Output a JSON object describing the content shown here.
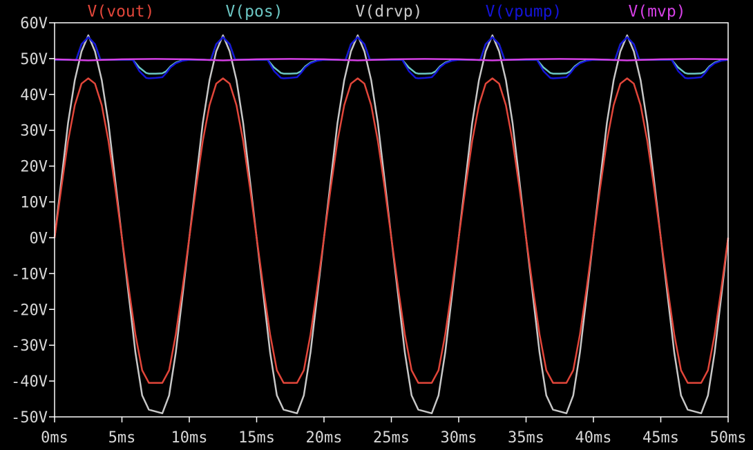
{
  "chart_data": {
    "type": "line",
    "title": "",
    "xlabel": "",
    "ylabel": "",
    "xlim": [
      0,
      50
    ],
    "ylim": [
      -50,
      60
    ],
    "x_unit": "ms",
    "y_unit": "V",
    "x_ticks": [
      0,
      5,
      10,
      15,
      20,
      25,
      30,
      35,
      40,
      45,
      50
    ],
    "x_tick_labels": [
      "0ms",
      "5ms",
      "10ms",
      "15ms",
      "20ms",
      "25ms",
      "30ms",
      "35ms",
      "40ms",
      "45ms",
      "50ms"
    ],
    "y_ticks": [
      60,
      50,
      40,
      30,
      20,
      10,
      0,
      -10,
      -20,
      -30,
      -40,
      -50
    ],
    "y_tick_labels": [
      "60V",
      "50V",
      "40V",
      "30V",
      "20V",
      "10V",
      "0V",
      "-10V",
      "-20V",
      "-30V",
      "-40V",
      "-50V"
    ],
    "grid": false,
    "legend_position": "top",
    "colors": {
      "background": "#000000",
      "frame": "#ffffff",
      "axis_text": "#d8d8d8"
    },
    "series": [
      {
        "name": "V(vout)",
        "color": "#e2463a",
        "x": [
          0,
          0.5,
          1,
          1.5,
          2,
          2.5,
          3,
          3.5,
          4,
          4.5,
          5,
          5.5,
          6,
          6.5,
          7,
          7.5,
          8,
          8.5,
          9,
          9.5,
          10,
          10.5,
          11,
          11.5,
          12,
          12.5,
          13,
          13.5,
          14,
          14.5,
          15,
          15.5,
          16,
          16.5,
          17,
          17.5,
          18,
          18.5,
          19,
          19.5,
          20,
          20.5,
          21,
          21.5,
          22,
          22.5,
          23,
          23.5,
          24,
          24.5,
          25,
          25.5,
          26,
          26.5,
          27,
          27.5,
          28,
          28.5,
          29,
          29.5,
          30,
          30.5,
          31,
          31.5,
          32,
          32.5,
          33,
          33.5,
          34,
          34.5,
          35,
          35.5,
          36,
          36.5,
          37,
          37.5,
          38,
          38.5,
          39,
          39.5,
          40,
          40.5,
          41,
          41.5,
          42,
          42.5,
          43,
          43.5,
          44,
          44.5,
          45,
          45.5,
          46,
          46.5,
          47,
          47.5,
          48,
          48.5,
          49,
          49.5,
          50
        ],
        "y": [
          0,
          14,
          27,
          37,
          43,
          44.5,
          43,
          37,
          27,
          14,
          0,
          -14,
          -27,
          -37,
          -40.5,
          -40.5,
          -40.5,
          -37,
          -27,
          -14,
          0,
          14,
          27,
          37,
          43,
          44.5,
          43,
          37,
          27,
          14,
          0,
          -14,
          -27,
          -37,
          -40.5,
          -40.5,
          -40.5,
          -37,
          -27,
          -14,
          0,
          14,
          27,
          37,
          43,
          44.5,
          43,
          37,
          27,
          14,
          0,
          -14,
          -27,
          -37,
          -40.5,
          -40.5,
          -40.5,
          -37,
          -27,
          -14,
          0,
          14,
          27,
          37,
          43,
          44.5,
          43,
          37,
          27,
          14,
          0,
          -14,
          -27,
          -37,
          -40.5,
          -40.5,
          -40.5,
          -37,
          -27,
          -14,
          0,
          14,
          27,
          37,
          43,
          44.5,
          43,
          37,
          27,
          14,
          0,
          -14,
          -27,
          -37,
          -40.5,
          -40.5,
          -40.5,
          -37,
          -27,
          -14,
          0
        ]
      },
      {
        "name": "V(pos)",
        "color": "#6cc7c4",
        "x": [
          0,
          1,
          1.6,
          2,
          2.5,
          3,
          3.4,
          4,
          5.8,
          6.3,
          6.8,
          7,
          7.5,
          8,
          8.3,
          8.6,
          9,
          9.5,
          10,
          11,
          11.6,
          12,
          12.5,
          13,
          13.4,
          14,
          15.8,
          16.3,
          16.8,
          17,
          17.5,
          18,
          18.3,
          18.6,
          19,
          19.5,
          20,
          21,
          21.6,
          22,
          22.5,
          23,
          23.4,
          24,
          25.8,
          26.3,
          26.8,
          27,
          27.5,
          28,
          28.3,
          28.6,
          29,
          29.5,
          30,
          31,
          31.6,
          32,
          32.5,
          33,
          33.4,
          34,
          35.8,
          36.3,
          36.8,
          37,
          37.5,
          38,
          38.3,
          38.6,
          39,
          39.5,
          40,
          41,
          41.6,
          42,
          42.5,
          43,
          43.4,
          44,
          45.8,
          46.3,
          46.8,
          47,
          47.5,
          48,
          48.3,
          48.6,
          49,
          49.5,
          50
        ],
        "y": [
          49.7,
          49.7,
          49.6,
          54,
          56,
          54,
          49.7,
          49.7,
          49.7,
          47.5,
          46,
          45.8,
          45.8,
          45.9,
          46.5,
          47.8,
          48.9,
          49.5,
          49.7,
          49.7,
          49.6,
          54,
          56,
          54,
          49.7,
          49.7,
          49.7,
          47.5,
          46,
          45.8,
          45.8,
          45.9,
          46.5,
          47.8,
          48.9,
          49.5,
          49.7,
          49.7,
          49.6,
          54,
          56,
          54,
          49.7,
          49.7,
          49.7,
          47.5,
          46,
          45.8,
          45.8,
          45.9,
          46.5,
          47.8,
          48.9,
          49.5,
          49.7,
          49.7,
          49.6,
          54,
          56,
          54,
          49.7,
          49.7,
          49.7,
          47.5,
          46,
          45.8,
          45.8,
          45.9,
          46.5,
          47.8,
          48.9,
          49.5,
          49.7,
          49.7,
          49.6,
          54,
          56,
          54,
          49.7,
          49.7,
          49.7,
          47.5,
          46,
          45.8,
          45.8,
          45.9,
          46.5,
          47.8,
          48.9,
          49.5,
          49.7
        ]
      },
      {
        "name": "V(drvp)",
        "color": "#c8c8c8",
        "x": [
          0,
          0.5,
          1,
          1.5,
          2,
          2.5,
          3,
          3.5,
          4,
          4.5,
          5,
          5.5,
          6,
          6.5,
          7,
          7.5,
          8,
          8.5,
          9,
          9.5,
          10,
          10.5,
          11,
          11.5,
          12,
          12.5,
          13,
          13.5,
          14,
          14.5,
          15,
          15.5,
          16,
          16.5,
          17,
          17.5,
          18,
          18.5,
          19,
          19.5,
          20,
          20.5,
          21,
          21.5,
          22,
          22.5,
          23,
          23.5,
          24,
          24.5,
          25,
          25.5,
          26,
          26.5,
          27,
          27.5,
          28,
          28.5,
          29,
          29.5,
          30,
          30.5,
          31,
          31.5,
          32,
          32.5,
          33,
          33.5,
          34,
          34.5,
          35,
          35.5,
          36,
          36.5,
          37,
          37.5,
          38,
          38.5,
          39,
          39.5,
          40,
          40.5,
          41,
          41.5,
          42,
          42.5,
          43,
          43.5,
          44,
          44.5,
          45,
          45.5,
          46,
          46.5,
          47,
          47.5,
          48,
          48.5,
          49,
          49.5,
          50
        ],
        "y": [
          0,
          16,
          32,
          44,
          52,
          56.5,
          52,
          44,
          32,
          16,
          0,
          -16,
          -32,
          -44,
          -48,
          -48.5,
          -49,
          -44,
          -32,
          -16,
          0,
          16,
          32,
          44,
          52,
          56.5,
          52,
          44,
          32,
          16,
          0,
          -16,
          -32,
          -44,
          -48,
          -48.5,
          -49,
          -44,
          -32,
          -16,
          0,
          16,
          32,
          44,
          52,
          56.5,
          52,
          44,
          32,
          16,
          0,
          -16,
          -32,
          -44,
          -48,
          -48.5,
          -49,
          -44,
          -32,
          -16,
          0,
          16,
          32,
          44,
          52,
          56.5,
          52,
          44,
          32,
          16,
          0,
          -16,
          -32,
          -44,
          -48,
          -48.5,
          -49,
          -44,
          -32,
          -16,
          0,
          16,
          32,
          44,
          52,
          56.5,
          52,
          44,
          32,
          16,
          0,
          -16,
          -32,
          -44,
          -48,
          -48.5,
          -49,
          -44,
          -32,
          -16,
          0
        ]
      },
      {
        "name": "V(vpump)",
        "color": "#1414d8",
        "x": [
          0,
          1,
          1.6,
          2,
          2.5,
          3,
          3.4,
          4,
          5.8,
          6.3,
          6.8,
          7,
          7.5,
          8,
          8.3,
          8.6,
          9,
          9.5,
          10,
          11,
          11.6,
          12,
          12.5,
          13,
          13.4,
          14,
          15.8,
          16.3,
          16.8,
          17,
          17.5,
          18,
          18.3,
          18.6,
          19,
          19.5,
          20,
          21,
          21.6,
          22,
          22.5,
          23,
          23.4,
          24,
          25.8,
          26.3,
          26.8,
          27,
          27.5,
          28,
          28.3,
          28.6,
          29,
          29.5,
          30,
          31,
          31.6,
          32,
          32.5,
          33,
          33.4,
          34,
          35.8,
          36.3,
          36.8,
          37,
          37.5,
          38,
          38.3,
          38.6,
          39,
          39.5,
          40,
          41,
          41.6,
          42,
          42.5,
          43,
          43.4,
          44,
          45.8,
          46.3,
          46.8,
          47,
          47.5,
          48,
          48.3,
          48.6,
          49,
          49.5,
          50
        ],
        "y": [
          49.7,
          49.7,
          49.6,
          54,
          56,
          54,
          49.7,
          49.7,
          49.7,
          46.5,
          44.6,
          44.5,
          44.6,
          44.8,
          46,
          47.5,
          48.7,
          49.4,
          49.7,
          49.7,
          49.6,
          54,
          56,
          54,
          49.7,
          49.7,
          49.7,
          46.5,
          44.6,
          44.5,
          44.6,
          44.8,
          46,
          47.5,
          48.7,
          49.4,
          49.7,
          49.7,
          49.6,
          54,
          56,
          54,
          49.7,
          49.7,
          49.7,
          46.5,
          44.6,
          44.5,
          44.6,
          44.8,
          46,
          47.5,
          48.7,
          49.4,
          49.7,
          49.7,
          49.6,
          54,
          56,
          54,
          49.7,
          49.7,
          49.7,
          46.5,
          44.6,
          44.5,
          44.6,
          44.8,
          46,
          47.5,
          48.7,
          49.4,
          49.7,
          49.7,
          49.6,
          54,
          56,
          54,
          49.7,
          49.7,
          49.7,
          46.5,
          44.6,
          44.5,
          44.6,
          44.8,
          46,
          47.5,
          48.7,
          49.4,
          49.7
        ]
      },
      {
        "name": "V(mvp)",
        "color": "#d640e6",
        "x": [
          0,
          2.5,
          5,
          7.5,
          10,
          12.5,
          15,
          17.5,
          20,
          22.5,
          25,
          27.5,
          30,
          32.5,
          35,
          37.5,
          40,
          42.5,
          45,
          47.5,
          50
        ],
        "y": [
          49.8,
          49.5,
          49.8,
          49.9,
          49.8,
          49.5,
          49.8,
          49.9,
          49.8,
          49.5,
          49.8,
          49.9,
          49.8,
          49.5,
          49.8,
          49.9,
          49.8,
          49.5,
          49.8,
          49.9,
          49.8
        ]
      }
    ]
  }
}
